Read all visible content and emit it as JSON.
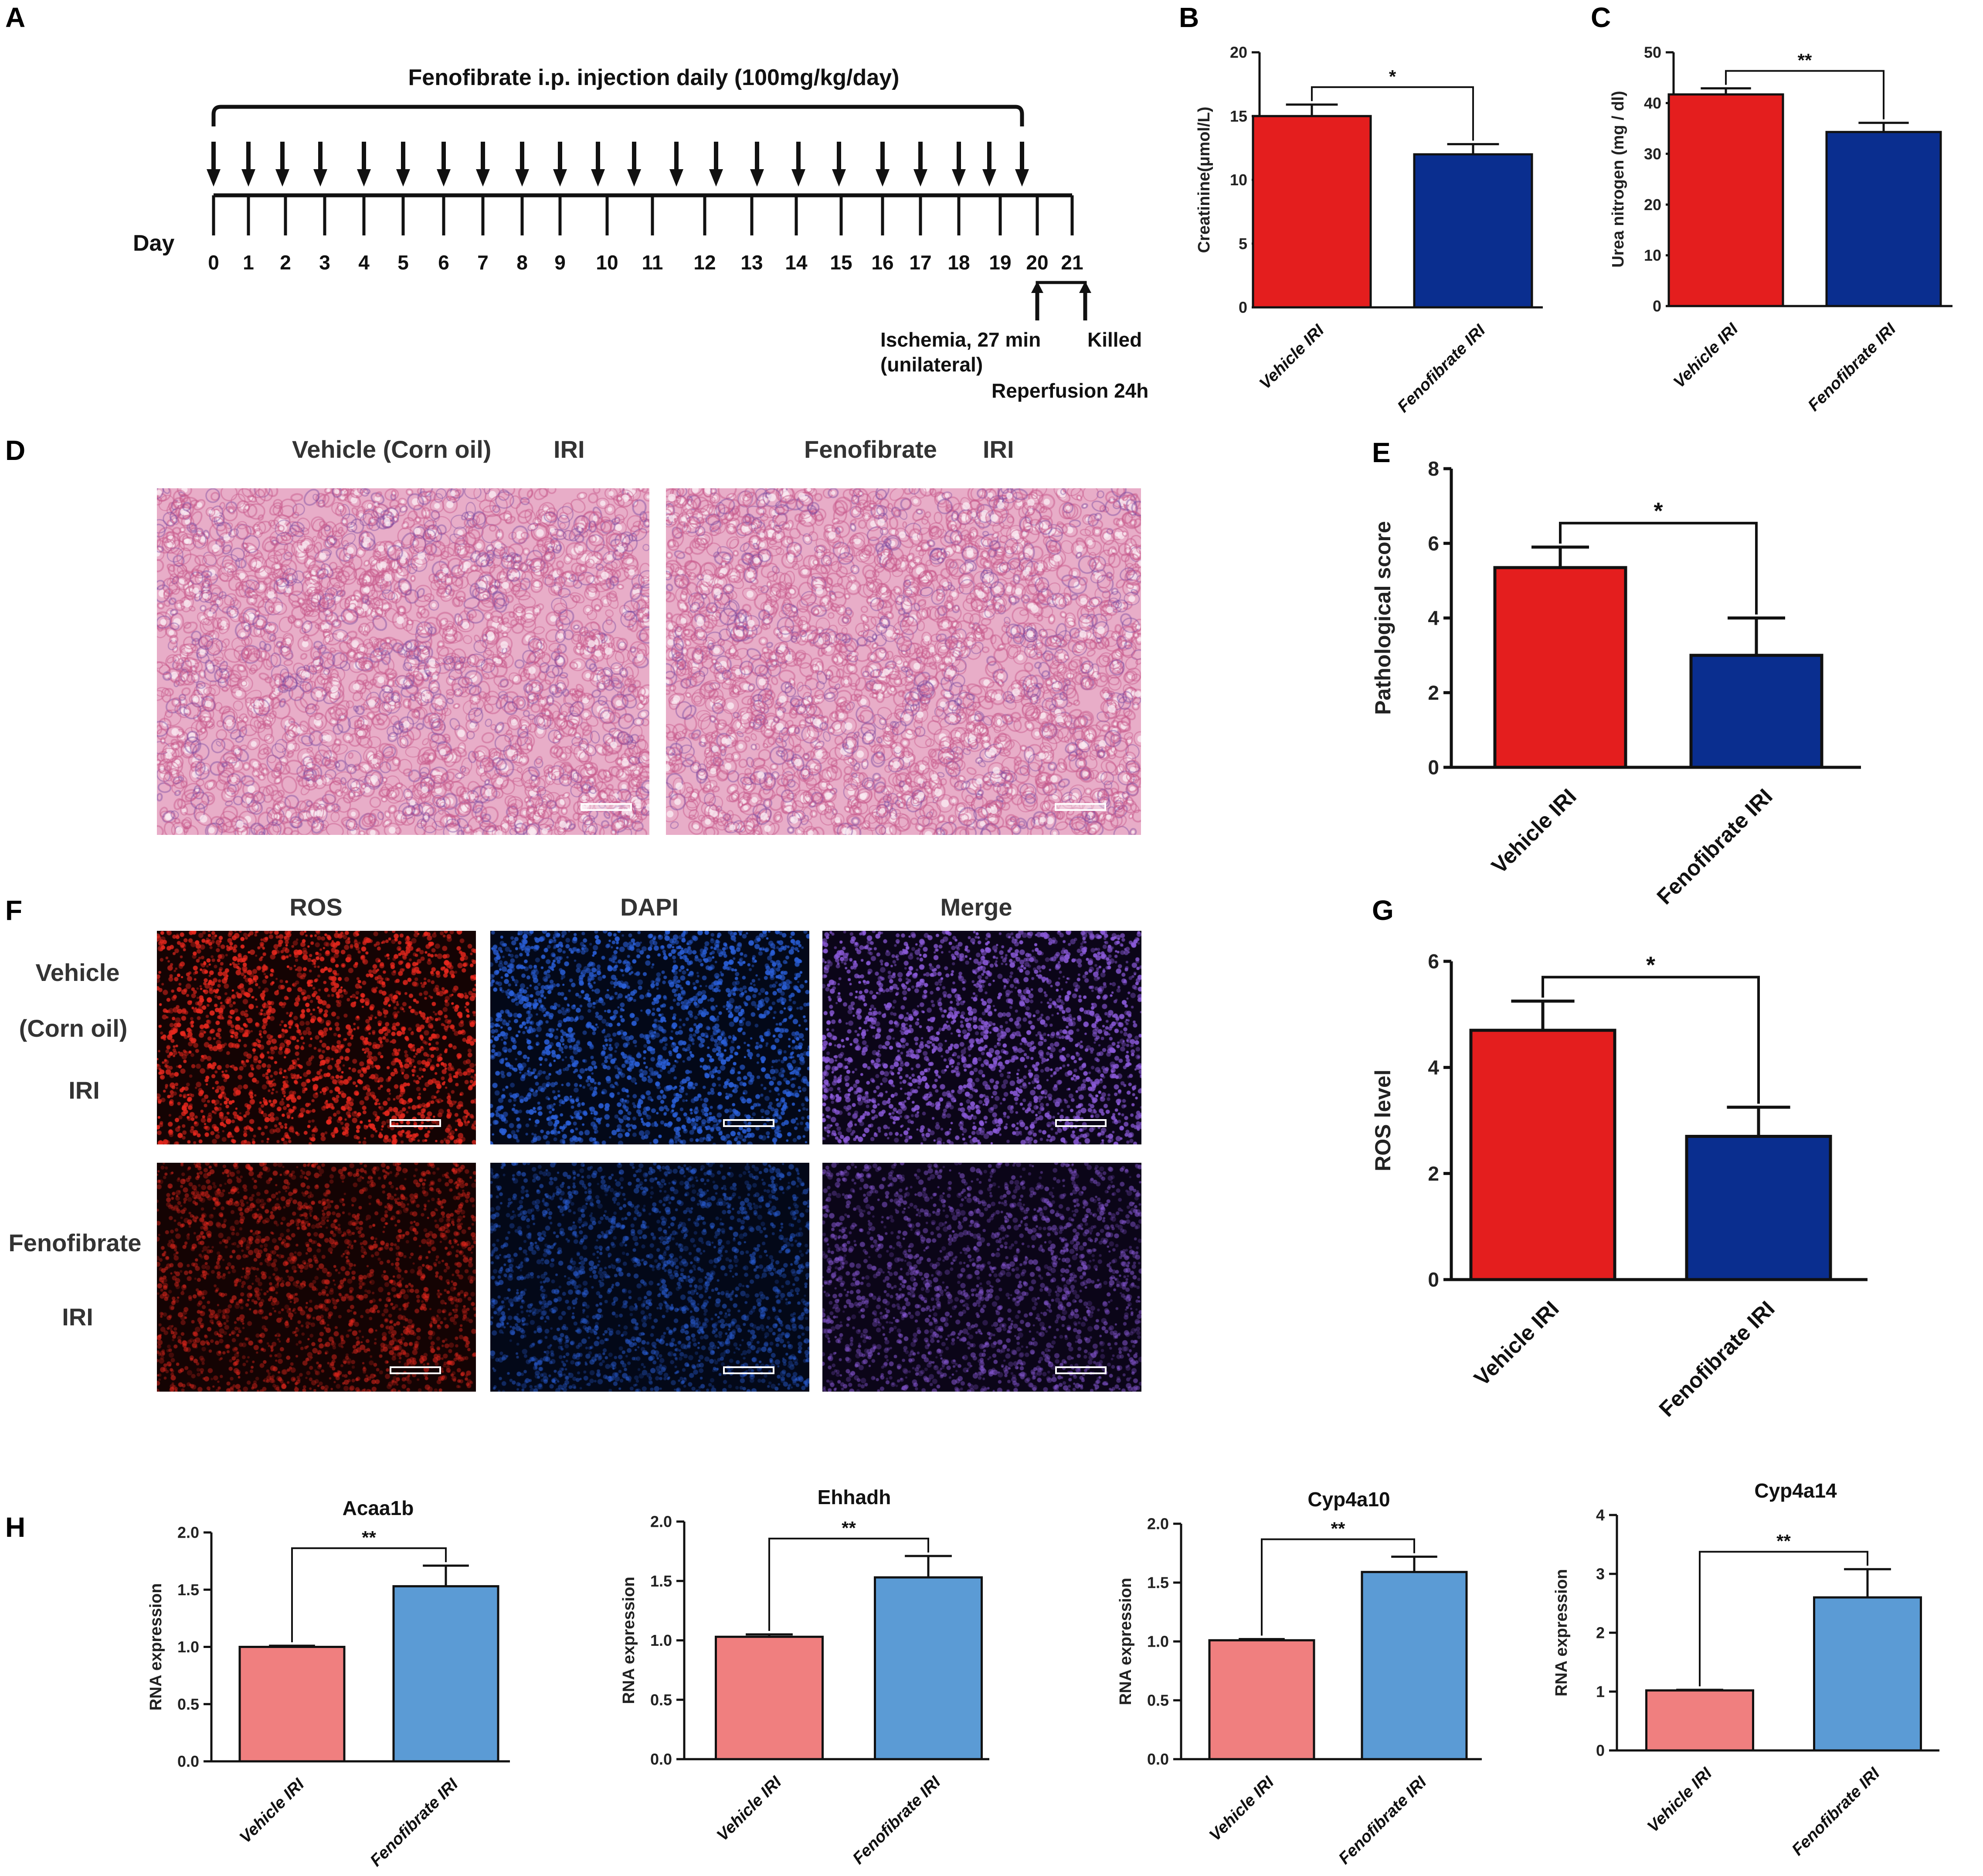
{
  "panel_labels": {
    "A": "A",
    "B": "B",
    "C": "C",
    "D": "D",
    "E": "E",
    "F": "F",
    "G": "G",
    "H": "H"
  },
  "timeline": {
    "injection_label": "Fenofibrate i.p. injection daily (100mg/kg/day)",
    "day_label": "Day",
    "days": [
      "0",
      "1",
      "2",
      "3",
      "4",
      "5",
      "6",
      "7",
      "8",
      "9",
      "10",
      "11",
      "12",
      "13",
      "14",
      "15",
      "16",
      "17",
      "18",
      "19",
      "20",
      "21"
    ],
    "ischemia_label_1": "Ischemia, 27 min",
    "ischemia_label_2": "(unilateral)",
    "killed_label": "Killed",
    "reperfusion_label": "Reperfusion 24h"
  },
  "panel_d": {
    "vehicle_title": "Vehicle (Corn oil)",
    "vehicle_iri": "IRI",
    "fenofibrate_title": "Fenofibrate",
    "fenofibrate_iri": "IRI"
  },
  "panel_f": {
    "col_ros": "ROS",
    "col_dapi": "DAPI",
    "col_merge": "Merge",
    "row1_line1": "Vehicle",
    "row1_line2": "(Corn oil)",
    "row1_line3": "IRI",
    "row2_line1": "Fenofibrate",
    "row2_line2": "IRI"
  },
  "colors": {
    "vehicle_dark": "#e41e1e",
    "fenofibrate_dark": "#0a2e8f",
    "vehicle_light": "#f07f7f",
    "fenofibrate_light": "#5b9bd5",
    "he_pink": "#e6a6c6",
    "ros_red": "#e8281e",
    "dapi_blue": "#2a5fd8",
    "merge_purple": "#8a5ad8"
  },
  "chart_data": [
    {
      "id": "B",
      "type": "bar",
      "title": "",
      "categories": [
        "Vehicle IRI",
        "Fenofibrate IRI"
      ],
      "values": [
        15,
        12
      ],
      "errors": [
        0.9,
        0.8
      ],
      "ylabel": "Creatinine(μmol/L)",
      "ylim": [
        0,
        20
      ],
      "yticks": [
        "0",
        "5",
        "10",
        "15",
        "20"
      ],
      "significance": "*"
    },
    {
      "id": "C",
      "type": "bar",
      "title": "",
      "categories": [
        "Vehicle IRI",
        "Fenofibrate IRI"
      ],
      "values": [
        41.7,
        34.3
      ],
      "errors": [
        1.2,
        1.8
      ],
      "ylabel": "Urea nitrogen (mg / dl)",
      "ylim": [
        0,
        50
      ],
      "yticks": [
        "0",
        "10",
        "20",
        "30",
        "40",
        "50"
      ],
      "significance": "**"
    },
    {
      "id": "E",
      "type": "bar",
      "title": "",
      "categories": [
        "Vehicle IRI",
        "Fenofibrate IRI"
      ],
      "values": [
        5.35,
        3.0
      ],
      "errors": [
        0.55,
        1.0
      ],
      "ylabel": "Pathological score",
      "ylim": [
        0,
        8
      ],
      "yticks": [
        "0",
        "2",
        "4",
        "6",
        "8"
      ],
      "significance": "*"
    },
    {
      "id": "G",
      "type": "bar",
      "title": "",
      "categories": [
        "Vehicle IRI",
        "Fenofibrate IRI"
      ],
      "values": [
        4.7,
        2.7
      ],
      "errors": [
        0.55,
        0.55
      ],
      "ylabel": "ROS level",
      "ylim": [
        0,
        6
      ],
      "yticks": [
        "0",
        "2",
        "4",
        "6"
      ],
      "significance": "*"
    },
    {
      "id": "H1",
      "type": "bar",
      "title": "Acaa1b",
      "categories": [
        "Vehicle IRI",
        "Fenofibrate IRI"
      ],
      "values": [
        1.0,
        1.53
      ],
      "errors": [
        0.01,
        0.18
      ],
      "ylabel": "RNA expression",
      "ylim": [
        0,
        2.0
      ],
      "yticks": [
        "0.0",
        "0.5",
        "1.0",
        "1.5",
        "2.0"
      ],
      "significance": "**"
    },
    {
      "id": "H2",
      "type": "bar",
      "title": "Ehhadh",
      "categories": [
        "Vehicle IRI",
        "Fenofibrate IRI"
      ],
      "values": [
        1.03,
        1.53
      ],
      "errors": [
        0.02,
        0.18
      ],
      "ylabel": "RNA expression",
      "ylim": [
        0,
        2.0
      ],
      "yticks": [
        "0.0",
        "0.5",
        "1.0",
        "1.5",
        "2.0"
      ],
      "significance": "**"
    },
    {
      "id": "H3",
      "type": "bar",
      "title": "Cyp4a10",
      "categories": [
        "Vehicle IRI",
        "Fenofibrate IRI"
      ],
      "values": [
        1.01,
        1.59
      ],
      "errors": [
        0.01,
        0.13
      ],
      "ylabel": "RNA expression",
      "ylim": [
        0,
        2.0
      ],
      "yticks": [
        "0.0",
        "0.5",
        "1.0",
        "1.5",
        "2.0"
      ],
      "significance": "**"
    },
    {
      "id": "H4",
      "type": "bar",
      "title": "Cyp4a14",
      "categories": [
        "Vehicle IRI",
        "Fenofibrate IRI"
      ],
      "values": [
        1.02,
        2.6
      ],
      "errors": [
        0.01,
        0.48
      ],
      "ylabel": "RNA expression",
      "ylim": [
        0,
        4
      ],
      "yticks": [
        "0",
        "1",
        "2",
        "3",
        "4"
      ],
      "significance": "**"
    }
  ]
}
